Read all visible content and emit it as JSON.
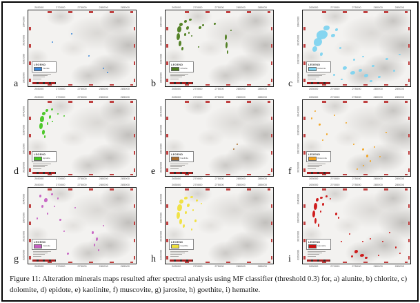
{
  "figure": {
    "caption": "Figure 11: Alteration minerals maps resulted after spectral analysis using MF classifier (threshold 0.3) for, a) alunite, b) chlorite, c) dolomite, d) epidote, e) kaolinite, f) muscovite, g) jarosite, h) goethite, i) hematite."
  },
  "legend": {
    "title": "LEGEND"
  },
  "axis": {
    "top_labels": [
      "265000",
      "270000",
      "275000",
      "280000",
      "285000"
    ],
    "bottom_labels": [
      "265000",
      "270000",
      "275000",
      "280000",
      "285000"
    ],
    "side_labels": [
      "3340000",
      "3336000",
      "3332000",
      "3328000"
    ],
    "tick_color": "#c04040"
  },
  "panels": [
    {
      "label": "a",
      "mineral": "Alunite",
      "color": "#3a87d9",
      "patches": [
        [
          69,
          75,
          2,
          2
        ],
        [
          73,
          81,
          2,
          2
        ],
        [
          22,
          41,
          2,
          2
        ],
        [
          56,
          59,
          2,
          2
        ],
        [
          40,
          30,
          1.5,
          1.5
        ]
      ]
    },
    {
      "label": "b",
      "mineral": "Chlorite",
      "color": "#4c7c1c",
      "patches": [
        [
          13,
          16,
          5,
          5
        ],
        [
          11,
          21,
          6,
          9
        ],
        [
          10,
          30,
          5,
          10
        ],
        [
          12,
          40,
          4,
          8
        ],
        [
          15,
          48,
          3,
          5
        ],
        [
          17,
          13,
          4,
          4
        ],
        [
          22,
          11,
          4,
          3
        ],
        [
          19,
          21,
          4,
          5
        ],
        [
          17,
          30,
          3,
          4
        ],
        [
          21,
          28,
          2,
          3
        ],
        [
          24,
          33,
          2,
          2
        ],
        [
          31,
          21,
          4,
          4
        ],
        [
          34,
          18,
          3,
          3
        ],
        [
          45,
          16,
          3,
          3
        ],
        [
          55,
          32,
          3,
          8
        ],
        [
          56,
          42,
          3,
          9
        ],
        [
          57,
          53,
          2,
          5
        ],
        [
          30,
          47,
          2,
          2
        ],
        [
          60,
          25,
          2,
          2
        ]
      ]
    },
    {
      "label": "c",
      "mineral": "Dolomite",
      "color": "#7ed3ef",
      "patches": [
        [
          13,
          26,
          16,
          13
        ],
        [
          10,
          36,
          12,
          12
        ],
        [
          19,
          20,
          9,
          7
        ],
        [
          9,
          47,
          7,
          8
        ],
        [
          26,
          31,
          6,
          5
        ],
        [
          30,
          24,
          4,
          4
        ],
        [
          16,
          55,
          4,
          5
        ],
        [
          34,
          48,
          3,
          3
        ],
        [
          37,
          74,
          6,
          5
        ],
        [
          44,
          80,
          7,
          5
        ],
        [
          52,
          77,
          5,
          4
        ],
        [
          57,
          84,
          6,
          5
        ],
        [
          64,
          72,
          4,
          3
        ],
        [
          70,
          86,
          4,
          3
        ],
        [
          77,
          63,
          4,
          3
        ],
        [
          84,
          78,
          3,
          3
        ],
        [
          89,
          57,
          3,
          2
        ],
        [
          47,
          64,
          3,
          3
        ],
        [
          28,
          84,
          3,
          3
        ],
        [
          55,
          60,
          3,
          2
        ],
        [
          62,
          92,
          4,
          3
        ],
        [
          35,
          90,
          3,
          2
        ]
      ]
    },
    {
      "label": "d",
      "mineral": "Epidote",
      "color": "#44c621",
      "patches": [
        [
          13,
          15,
          5,
          5
        ],
        [
          11,
          21,
          6,
          9
        ],
        [
          10,
          30,
          5,
          9
        ],
        [
          13,
          39,
          4,
          7
        ],
        [
          16,
          12,
          4,
          4
        ],
        [
          21,
          11,
          3,
          3
        ],
        [
          19,
          20,
          3,
          5
        ],
        [
          17,
          29,
          2,
          4
        ],
        [
          15,
          46,
          2,
          4
        ],
        [
          27,
          17,
          2,
          2
        ],
        [
          22,
          27,
          2,
          2
        ],
        [
          33,
          20,
          2,
          2
        ]
      ]
    },
    {
      "label": "e",
      "mineral": "Kaolinite",
      "color": "#a86b2a",
      "patches": [
        [
          66,
          57,
          2,
          2
        ],
        [
          63,
          64,
          2,
          2
        ]
      ]
    },
    {
      "label": "f",
      "mineral": "Muscovite",
      "color": "#f2a21d",
      "patches": [
        [
          8,
          23,
          2,
          3
        ],
        [
          15,
          31,
          3,
          3
        ],
        [
          22,
          44,
          2,
          3
        ],
        [
          11,
          14,
          2,
          2
        ],
        [
          29,
          19,
          2,
          2
        ],
        [
          40,
          29,
          2,
          2
        ],
        [
          47,
          57,
          2,
          2
        ],
        [
          55,
          64,
          3,
          3
        ],
        [
          59,
          72,
          3,
          4
        ],
        [
          62,
          79,
          2,
          3
        ],
        [
          56,
          85,
          2,
          2
        ],
        [
          66,
          61,
          2,
          2
        ],
        [
          50,
          90,
          2,
          2
        ],
        [
          71,
          74,
          2,
          2
        ],
        [
          18,
          52,
          2,
          2
        ],
        [
          77,
          42,
          2,
          2
        ]
      ]
    },
    {
      "label": "g",
      "mineral": "Jarosite",
      "color": "#c55fc2",
      "patches": [
        [
          10,
          9,
          3,
          4
        ],
        [
          15,
          14,
          5,
          6
        ],
        [
          12,
          23,
          3,
          4
        ],
        [
          21,
          7,
          3,
          3
        ],
        [
          27,
          13,
          2,
          3
        ],
        [
          17,
          33,
          2,
          3
        ],
        [
          29,
          41,
          3,
          3
        ],
        [
          8,
          39,
          2,
          3
        ],
        [
          24,
          24,
          2,
          2
        ],
        [
          59,
          57,
          3,
          4
        ],
        [
          63,
          65,
          3,
          5
        ],
        [
          61,
          74,
          2,
          4
        ],
        [
          65,
          81,
          2,
          3
        ],
        [
          36,
          85,
          3,
          3
        ],
        [
          69,
          49,
          2,
          2
        ],
        [
          43,
          25,
          2,
          2
        ],
        [
          33,
          56,
          2,
          2
        ]
      ]
    },
    {
      "label": "h",
      "mineral": "Goethite",
      "color": "#f0e03c",
      "patches": [
        [
          13,
          15,
          6,
          6
        ],
        [
          11,
          22,
          7,
          10
        ],
        [
          10,
          32,
          5,
          10
        ],
        [
          13,
          41,
          4,
          8
        ],
        [
          17,
          12,
          5,
          4
        ],
        [
          23,
          11,
          4,
          3
        ],
        [
          20,
          21,
          4,
          5
        ],
        [
          18,
          31,
          3,
          4
        ],
        [
          16,
          48,
          3,
          5
        ],
        [
          28,
          15,
          3,
          3
        ],
        [
          25,
          28,
          2,
          3
        ],
        [
          27,
          42,
          3,
          4
        ],
        [
          24,
          54,
          2,
          3
        ],
        [
          33,
          20,
          2,
          2
        ]
      ]
    },
    {
      "label": "i",
      "mineral": "Hematite",
      "color": "#cc1212",
      "patches": [
        [
          12,
          14,
          4,
          5
        ],
        [
          10,
          20,
          5,
          10
        ],
        [
          9,
          30,
          4,
          10
        ],
        [
          11,
          40,
          3,
          8
        ],
        [
          14,
          47,
          2,
          5
        ],
        [
          16,
          12,
          4,
          3
        ],
        [
          21,
          10,
          3,
          3
        ],
        [
          18,
          20,
          3,
          4
        ],
        [
          16,
          30,
          2,
          3
        ],
        [
          25,
          14,
          2,
          2
        ],
        [
          30,
          33,
          3,
          4
        ],
        [
          33,
          38,
          2,
          3
        ],
        [
          48,
          82,
          5,
          5
        ],
        [
          53,
          87,
          6,
          4
        ],
        [
          58,
          91,
          4,
          3
        ],
        [
          45,
          89,
          3,
          3
        ],
        [
          43,
          60,
          2,
          2
        ],
        [
          62,
          66,
          2,
          2
        ],
        [
          74,
          70,
          2,
          2
        ],
        [
          80,
          58,
          2,
          2
        ],
        [
          86,
          77,
          2,
          3
        ],
        [
          70,
          88,
          2,
          2
        ],
        [
          90,
          85,
          2,
          2
        ],
        [
          55,
          70,
          2,
          2
        ],
        [
          35,
          70,
          2,
          2
        ]
      ]
    }
  ]
}
